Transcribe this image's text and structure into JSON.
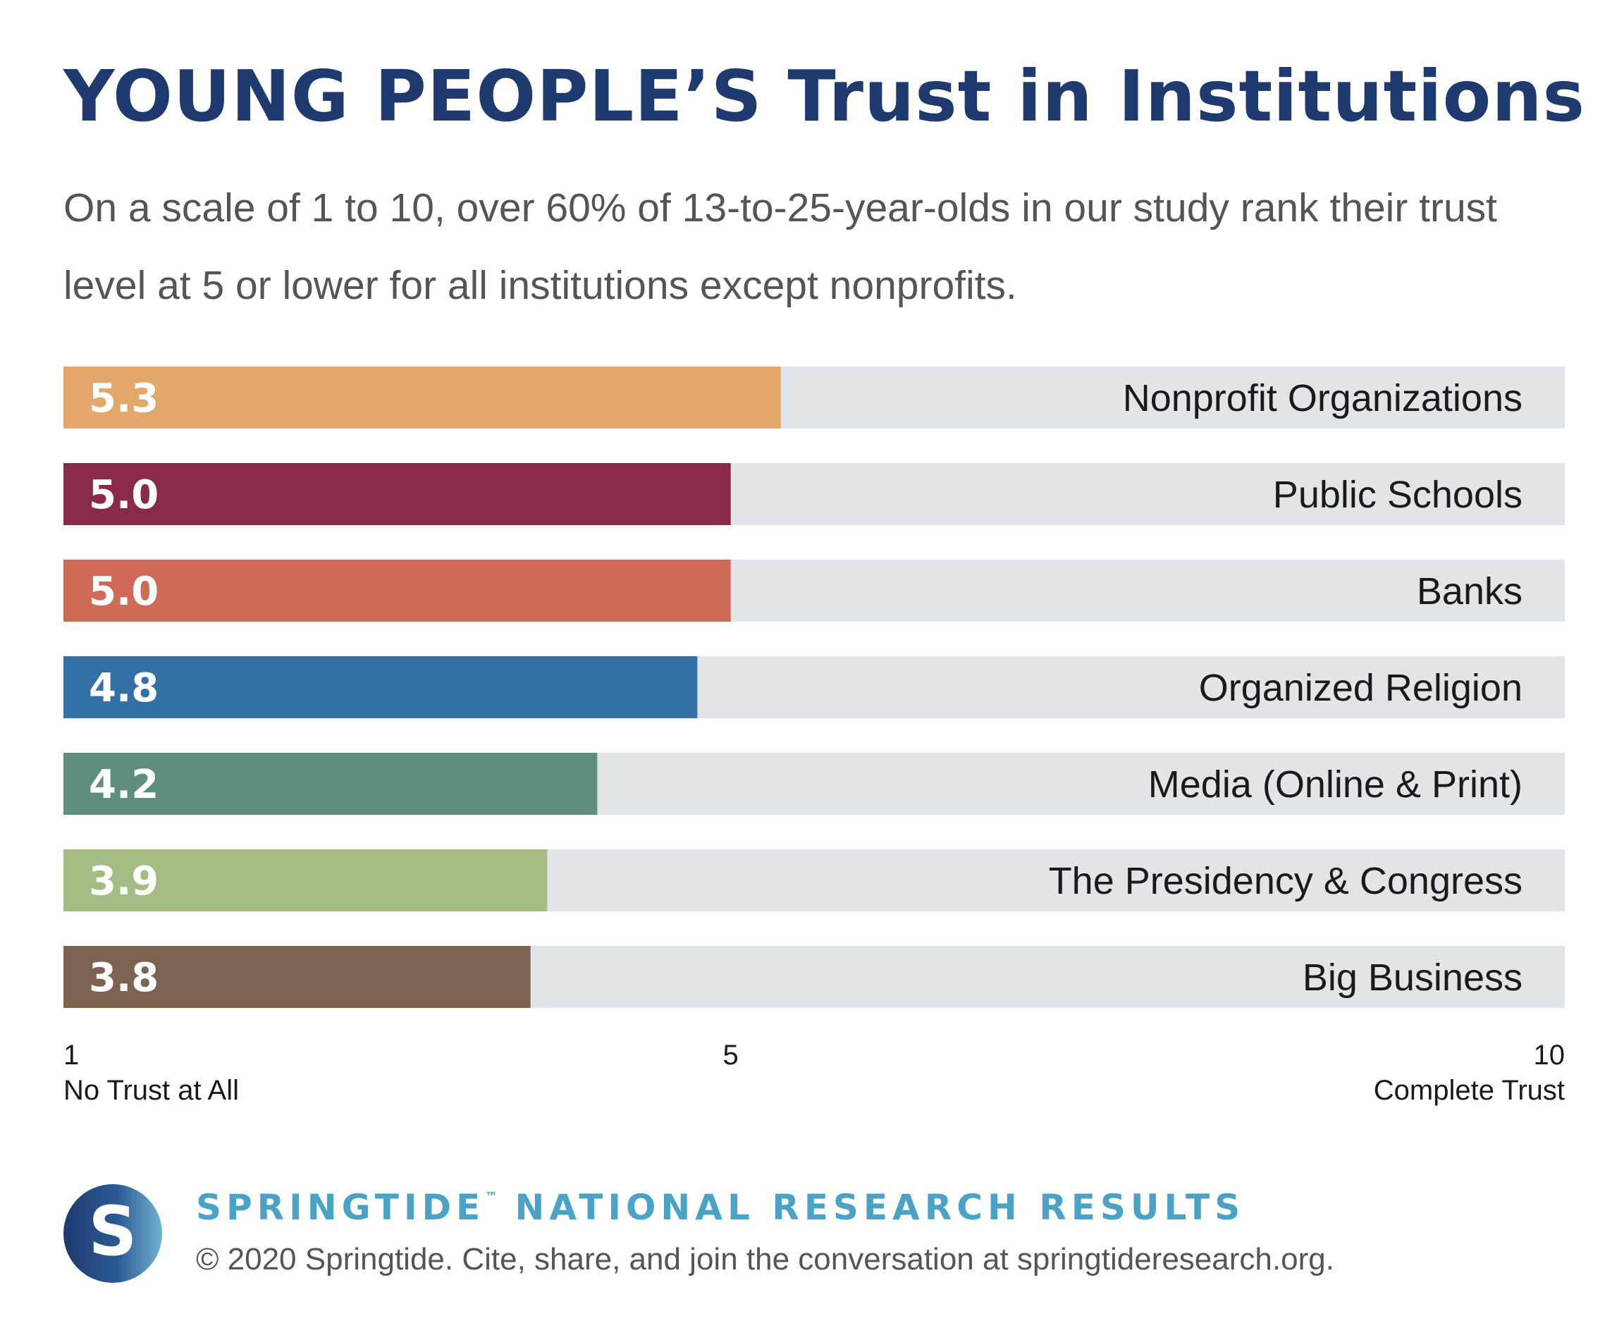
{
  "title": "YOUNG PEOPLE’S Trust in Institutions",
  "subtitle": "On a scale of 1 to 10, over 60% of 13-to-25-year-olds in our study rank their trust level at 5 or lower for all institutions except nonprofits.",
  "chart_data": {
    "type": "bar",
    "orientation": "horizontal",
    "categories": [
      "Nonprofit Organizations",
      "Public Schools",
      "Banks",
      "Organized Religion",
      "Media (Online & Print)",
      "The Presidency & Congress",
      "Big Business"
    ],
    "values": [
      5.3,
      5.0,
      5.0,
      4.8,
      4.2,
      3.9,
      3.8
    ],
    "value_labels": [
      "5.3",
      "5.0",
      "5.0",
      "4.8",
      "4.2",
      "3.9",
      "3.8"
    ],
    "colors": [
      "#e3a66b",
      "#8a2a4a",
      "#d06a58",
      "#3270a6",
      "#5f8d80",
      "#a4bb84",
      "#7b6350"
    ],
    "track_color": "#e1e5e9",
    "xlim": [
      1,
      10
    ],
    "ticks": [
      {
        "value": 1,
        "label": "1",
        "caption": "No Trust at All"
      },
      {
        "value": 5,
        "label": "5",
        "caption": ""
      },
      {
        "value": 10,
        "label": "10",
        "caption": "Complete Trust"
      }
    ],
    "grid": false,
    "legend": "none"
  },
  "footer": {
    "logo_letter": "S",
    "brand": "SPRINGTIDE",
    "brand_mark": "™",
    "brand_rest": " NATIONAL RESEARCH RESULTS",
    "copyright": "© 2020 Springtide. Cite, share, and join the conversation at springtideresearch.org."
  }
}
